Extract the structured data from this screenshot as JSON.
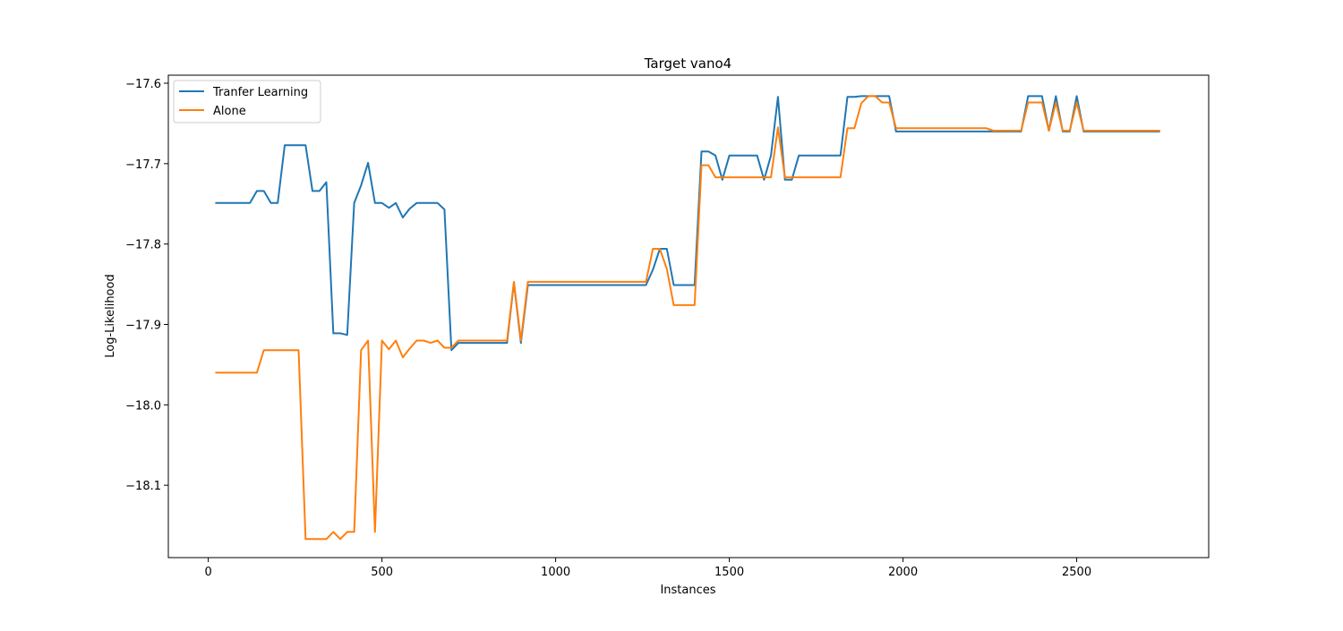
{
  "chart_data": {
    "type": "line",
    "title": "Target vano4",
    "xlabel": "Instances",
    "ylabel": "Log-Likelihood",
    "xlim": [
      -115,
      2880
    ],
    "ylim": [
      -18.19,
      -17.59
    ],
    "xticks": [
      0,
      500,
      1000,
      1500,
      2000,
      2500
    ],
    "yticks": [
      -17.6,
      -17.7,
      -17.8,
      -17.9,
      -18.0,
      -18.1
    ],
    "ytick_labels": [
      "−17.6",
      "−17.7",
      "−17.8",
      "−17.9",
      "−18.0",
      "−18.1"
    ],
    "grid": false,
    "legend_position": "upper-left",
    "series": [
      {
        "name": "Tranfer Learning",
        "color": "#1f77b4",
        "x": [
          20,
          40,
          60,
          80,
          100,
          120,
          140,
          160,
          180,
          200,
          220,
          240,
          260,
          280,
          300,
          320,
          340,
          360,
          380,
          400,
          420,
          440,
          460,
          480,
          500,
          520,
          540,
          560,
          580,
          600,
          620,
          640,
          660,
          680,
          700,
          720,
          740,
          760,
          780,
          800,
          820,
          840,
          860,
          880,
          900,
          920,
          940,
          960,
          980,
          1000,
          1020,
          1040,
          1060,
          1080,
          1100,
          1120,
          1140,
          1160,
          1180,
          1200,
          1220,
          1240,
          1260,
          1280,
          1300,
          1320,
          1340,
          1360,
          1380,
          1400,
          1420,
          1440,
          1460,
          1480,
          1500,
          1520,
          1540,
          1560,
          1580,
          1600,
          1620,
          1640,
          1660,
          1680,
          1700,
          1720,
          1740,
          1760,
          1780,
          1800,
          1820,
          1840,
          1860,
          1880,
          1900,
          1920,
          1940,
          1960,
          1980,
          2000,
          2020,
          2040,
          2060,
          2080,
          2100,
          2120,
          2140,
          2160,
          2180,
          2200,
          2220,
          2240,
          2260,
          2280,
          2300,
          2320,
          2340,
          2360,
          2380,
          2400,
          2420,
          2440,
          2460,
          2480,
          2500,
          2520,
          2540,
          2560,
          2580,
          2600,
          2620,
          2640,
          2660,
          2680,
          2700,
          2720,
          2740
        ],
        "y": [
          -17.749,
          -17.749,
          -17.749,
          -17.749,
          -17.749,
          -17.749,
          -17.734,
          -17.734,
          -17.749,
          -17.749,
          -17.677,
          -17.677,
          -17.677,
          -17.677,
          -17.734,
          -17.734,
          -17.723,
          -17.911,
          -17.911,
          -17.913,
          -17.749,
          -17.727,
          -17.699,
          -17.749,
          -17.749,
          -17.755,
          -17.749,
          -17.767,
          -17.756,
          -17.749,
          -17.749,
          -17.749,
          -17.749,
          -17.757,
          -17.932,
          -17.923,
          -17.923,
          -17.923,
          -17.923,
          -17.923,
          -17.923,
          -17.923,
          -17.923,
          -17.848,
          -17.923,
          -17.851,
          -17.851,
          -17.851,
          -17.851,
          -17.851,
          -17.851,
          -17.851,
          -17.851,
          -17.851,
          -17.851,
          -17.851,
          -17.851,
          -17.851,
          -17.851,
          -17.851,
          -17.851,
          -17.851,
          -17.851,
          -17.832,
          -17.806,
          -17.806,
          -17.851,
          -17.851,
          -17.851,
          -17.851,
          -17.685,
          -17.685,
          -17.69,
          -17.72,
          -17.69,
          -17.69,
          -17.69,
          -17.69,
          -17.69,
          -17.72,
          -17.69,
          -17.617,
          -17.72,
          -17.72,
          -17.69,
          -17.69,
          -17.69,
          -17.69,
          -17.69,
          -17.69,
          -17.69,
          -17.617,
          -17.617,
          -17.616,
          -17.616,
          -17.616,
          -17.616,
          -17.616,
          -17.66,
          -17.66,
          -17.66,
          -17.66,
          -17.66,
          -17.66,
          -17.66,
          -17.66,
          -17.66,
          -17.66,
          -17.66,
          -17.66,
          -17.66,
          -17.66,
          -17.66,
          -17.66,
          -17.66,
          -17.66,
          -17.66,
          -17.616,
          -17.616,
          -17.616,
          -17.659,
          -17.616,
          -17.66,
          -17.66,
          -17.616,
          -17.66,
          -17.66,
          -17.66,
          -17.66,
          -17.66,
          -17.66,
          -17.66,
          -17.66,
          -17.66,
          -17.66,
          -17.66,
          -17.66
        ]
      },
      {
        "name": "Alone",
        "color": "#ff7f0e",
        "x": [
          20,
          40,
          60,
          80,
          100,
          120,
          140,
          160,
          180,
          200,
          220,
          240,
          260,
          280,
          300,
          320,
          340,
          360,
          380,
          400,
          420,
          440,
          460,
          480,
          500,
          520,
          540,
          560,
          580,
          600,
          620,
          640,
          660,
          680,
          700,
          720,
          740,
          760,
          780,
          800,
          820,
          840,
          860,
          880,
          900,
          920,
          940,
          960,
          980,
          1000,
          1020,
          1040,
          1060,
          1080,
          1100,
          1120,
          1140,
          1160,
          1180,
          1200,
          1220,
          1240,
          1260,
          1280,
          1300,
          1320,
          1340,
          1360,
          1380,
          1400,
          1420,
          1440,
          1460,
          1480,
          1500,
          1520,
          1540,
          1560,
          1580,
          1600,
          1620,
          1640,
          1660,
          1680,
          1700,
          1720,
          1740,
          1760,
          1780,
          1800,
          1820,
          1840,
          1860,
          1880,
          1900,
          1920,
          1940,
          1960,
          1980,
          2000,
          2020,
          2040,
          2060,
          2080,
          2100,
          2120,
          2140,
          2160,
          2180,
          2200,
          2220,
          2240,
          2260,
          2280,
          2300,
          2320,
          2340,
          2360,
          2380,
          2400,
          2420,
          2440,
          2460,
          2480,
          2500,
          2520,
          2540,
          2560,
          2580,
          2600,
          2620,
          2640,
          2660,
          2680,
          2700,
          2720,
          2740
        ],
        "y": [
          -17.96,
          -17.96,
          -17.96,
          -17.96,
          -17.96,
          -17.96,
          -17.96,
          -17.932,
          -17.932,
          -17.932,
          -17.932,
          -17.932,
          -17.932,
          -18.167,
          -18.167,
          -18.167,
          -18.167,
          -18.158,
          -18.167,
          -18.158,
          -18.158,
          -17.932,
          -17.92,
          -18.158,
          -17.92,
          -17.931,
          -17.92,
          -17.941,
          -17.93,
          -17.92,
          -17.92,
          -17.923,
          -17.92,
          -17.929,
          -17.929,
          -17.92,
          -17.92,
          -17.92,
          -17.92,
          -17.92,
          -17.92,
          -17.92,
          -17.92,
          -17.847,
          -17.92,
          -17.847,
          -17.847,
          -17.847,
          -17.847,
          -17.847,
          -17.847,
          -17.847,
          -17.847,
          -17.847,
          -17.847,
          -17.847,
          -17.847,
          -17.847,
          -17.847,
          -17.847,
          -17.847,
          -17.847,
          -17.847,
          -17.806,
          -17.806,
          -17.831,
          -17.876,
          -17.876,
          -17.876,
          -17.876,
          -17.702,
          -17.702,
          -17.717,
          -17.717,
          -17.717,
          -17.717,
          -17.717,
          -17.717,
          -17.717,
          -17.717,
          -17.717,
          -17.655,
          -17.717,
          -17.717,
          -17.717,
          -17.717,
          -17.717,
          -17.717,
          -17.717,
          -17.717,
          -17.717,
          -17.656,
          -17.656,
          -17.625,
          -17.616,
          -17.616,
          -17.624,
          -17.624,
          -17.656,
          -17.656,
          -17.656,
          -17.656,
          -17.656,
          -17.656,
          -17.656,
          -17.656,
          -17.656,
          -17.656,
          -17.656,
          -17.656,
          -17.656,
          -17.656,
          -17.659,
          -17.659,
          -17.659,
          -17.659,
          -17.659,
          -17.624,
          -17.624,
          -17.624,
          -17.659,
          -17.624,
          -17.659,
          -17.659,
          -17.624,
          -17.659,
          -17.659,
          -17.659,
          -17.659,
          -17.659,
          -17.659,
          -17.659,
          -17.659,
          -17.659,
          -17.659,
          -17.659,
          -17.659
        ]
      }
    ]
  }
}
